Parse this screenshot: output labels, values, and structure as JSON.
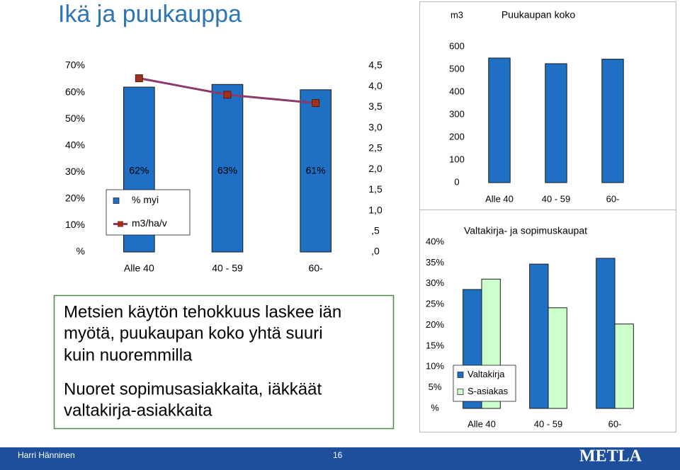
{
  "slide": {
    "title": "Ikä ja puukauppa",
    "text_lines": [
      "Metsien käytön tehokkuus laskee iän",
      "myötä, puukaupan koko yhtä suuri",
      "kuin nuoremmilla",
      "Nuoret sopimusasiakkaita, iäkkäät",
      "valtakirja-asiakkaita"
    ],
    "footer": {
      "author": "Harri Hänninen",
      "page": "16",
      "logo": "METLA"
    }
  },
  "chart_data": [
    {
      "type": "bar",
      "categories": [
        "Alle 40",
        "40 - 59",
        "60-"
      ],
      "series": [
        {
          "name": "% myi",
          "color": "#1f6fc4",
          "values": [
            62,
            63,
            61
          ],
          "value_labels": [
            "62%",
            "63%",
            "61%"
          ]
        },
        {
          "name": "m3/ha/v",
          "type": "line",
          "axis": "y2",
          "color": "#8b3a6b",
          "marker_color": "#a0301e",
          "values": [
            4.2,
            3.8,
            3.6
          ]
        }
      ],
      "ylim": [
        0,
        70
      ],
      "yticks": [
        {
          "value": 0,
          "label": "%"
        },
        {
          "value": 10,
          "label": "10%"
        },
        {
          "value": 20,
          "label": "20%"
        },
        {
          "value": 30,
          "label": "30%"
        },
        {
          "value": 40,
          "label": "40%"
        },
        {
          "value": 50,
          "label": "50%"
        },
        {
          "value": 60,
          "label": "60%"
        },
        {
          "value": 70,
          "label": "70%"
        }
      ],
      "y2lim": [
        0,
        4.5
      ],
      "y2ticks": [
        {
          "value": 0,
          "label": ",0"
        },
        {
          "value": 0.5,
          "label": ",5"
        },
        {
          "value": 1,
          "label": "1,0"
        },
        {
          "value": 1.5,
          "label": "1,5"
        },
        {
          "value": 2,
          "label": "2,0"
        },
        {
          "value": 2.5,
          "label": "2,5"
        },
        {
          "value": 3,
          "label": "3,0"
        },
        {
          "value": 3.5,
          "label": "3,5"
        },
        {
          "value": 4,
          "label": "4,0"
        },
        {
          "value": 4.5,
          "label": "4,5"
        }
      ],
      "legend": "lower left"
    },
    {
      "type": "bar",
      "title": "Puukaupan koko",
      "unit_label": "m3",
      "categories": [
        "Alle 40",
        "40 - 59",
        "60-"
      ],
      "series": [
        {
          "color": "#1f6fc4",
          "values": [
            550,
            525,
            545
          ]
        }
      ],
      "ylim": [
        0,
        600
      ],
      "yticks": [
        0,
        100,
        200,
        300,
        400,
        500,
        600
      ]
    },
    {
      "type": "bar",
      "title": "Valtakirja- ja sopimuskaupat",
      "categories": [
        "Alle 40",
        "40 - 59",
        "60-"
      ],
      "series": [
        {
          "name": "Valtakirja",
          "color": "#1f6fc4",
          "values": [
            28.6,
            34.7,
            36.1
          ]
        },
        {
          "name": "S-asiakas",
          "color": "#ccffcc",
          "values": [
            31.1,
            24.2,
            20.3
          ]
        }
      ],
      "ylim": [
        0,
        40
      ],
      "yticks": [
        {
          "value": 0,
          "label": "%"
        },
        {
          "value": 5,
          "label": "5%"
        },
        {
          "value": 10,
          "label": "10%"
        },
        {
          "value": 15,
          "label": "15%"
        },
        {
          "value": 20,
          "label": "20%"
        },
        {
          "value": 25,
          "label": "25%"
        },
        {
          "value": 30,
          "label": "30%"
        },
        {
          "value": 35,
          "label": "35%"
        },
        {
          "value": 40,
          "label": "40%"
        }
      ],
      "legend": "lower left"
    }
  ]
}
